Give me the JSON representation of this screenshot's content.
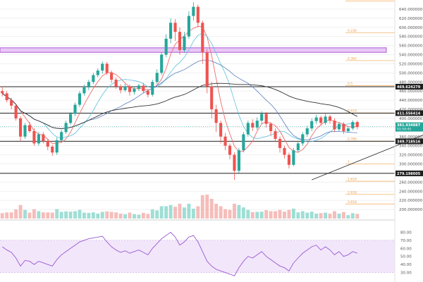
{
  "chart_data": {
    "type": "candlestick",
    "price_axis": {
      "range": [
        180,
        660
      ],
      "ticks": [
        640,
        620,
        600,
        580,
        560,
        540,
        520,
        500,
        480,
        460,
        440,
        420,
        400,
        380,
        360,
        340,
        320,
        300,
        280,
        260,
        240,
        220,
        200
      ],
      "tick_format": 6
    },
    "rsi_axis": {
      "range": [
        20,
        90
      ],
      "ticks": [
        80,
        70,
        60,
        50,
        40,
        30
      ],
      "band": [
        30,
        70
      ]
    },
    "horizontal_levels": [
      {
        "value": 469.624279,
        "label": "469.624279"
      },
      {
        "value": 411.556414,
        "label": "411.556414"
      },
      {
        "value": 349.718516,
        "label": "349.718516"
      },
      {
        "value": 279.198005,
        "label": "279.198005"
      }
    ],
    "resistance_zone": [
      545,
      555
    ],
    "current_price": {
      "value": 381.934887,
      "label": "381.934887",
      "countdown": "01:54:45"
    },
    "fib_levels": [
      658,
      588,
      527,
      472,
      412,
      350,
      300,
      262,
      233,
      212
    ],
    "fib_labels": [
      "0.0",
      "0.236",
      "0.382",
      "0.5",
      "0.618",
      "0.786",
      "1",
      "1.618",
      "2.618",
      "3.618"
    ],
    "trendline": {
      "start": {
        "index": 68,
        "price": 265
      },
      "end": {
        "index": 104,
        "price": 410
      }
    },
    "candles": [
      [
        460,
        455,
        470,
        448
      ],
      [
        455,
        440,
        460,
        435
      ],
      [
        440,
        428,
        445,
        420
      ],
      [
        428,
        400,
        432,
        395
      ],
      [
        400,
        360,
        405,
        350
      ],
      [
        360,
        385,
        390,
        355
      ],
      [
        385,
        372,
        392,
        368
      ],
      [
        372,
        345,
        378,
        340
      ],
      [
        345,
        365,
        370,
        340
      ],
      [
        365,
        350,
        370,
        345
      ],
      [
        350,
        338,
        355,
        330
      ],
      [
        338,
        325,
        342,
        318
      ],
      [
        325,
        352,
        358,
        320
      ],
      [
        352,
        370,
        375,
        348
      ],
      [
        370,
        390,
        395,
        366
      ],
      [
        390,
        410,
        414,
        386
      ],
      [
        410,
        430,
        435,
        405
      ],
      [
        430,
        455,
        460,
        425
      ],
      [
        455,
        468,
        474,
        450
      ],
      [
        468,
        480,
        485,
        462
      ],
      [
        480,
        495,
        500,
        475
      ],
      [
        495,
        505,
        510,
        490
      ],
      [
        505,
        520,
        525,
        498
      ],
      [
        520,
        500,
        524,
        495
      ],
      [
        500,
        485,
        505,
        478
      ],
      [
        485,
        470,
        490,
        465
      ],
      [
        470,
        462,
        475,
        455
      ],
      [
        462,
        470,
        476,
        458
      ],
      [
        470,
        458,
        474,
        450
      ],
      [
        458,
        465,
        470,
        452
      ],
      [
        465,
        472,
        476,
        460
      ],
      [
        472,
        460,
        478,
        455
      ],
      [
        460,
        452,
        465,
        446
      ],
      [
        452,
        480,
        485,
        448
      ],
      [
        480,
        500,
        508,
        475
      ],
      [
        500,
        540,
        545,
        495
      ],
      [
        540,
        575,
        585,
        535
      ],
      [
        575,
        610,
        620,
        565
      ],
      [
        610,
        590,
        618,
        570
      ],
      [
        590,
        550,
        600,
        540
      ],
      [
        550,
        580,
        590,
        545
      ],
      [
        580,
        625,
        635,
        575
      ],
      [
        625,
        645,
        655,
        615
      ],
      [
        645,
        610,
        650,
        600
      ],
      [
        610,
        545,
        615,
        520
      ],
      [
        545,
        470,
        552,
        455
      ],
      [
        470,
        420,
        480,
        400
      ],
      [
        420,
        390,
        430,
        370
      ],
      [
        390,
        360,
        395,
        345
      ],
      [
        360,
        340,
        368,
        330
      ],
      [
        340,
        320,
        345,
        310
      ],
      [
        320,
        285,
        325,
        265
      ],
      [
        285,
        330,
        335,
        280
      ],
      [
        330,
        365,
        370,
        325
      ],
      [
        365,
        390,
        395,
        360
      ],
      [
        390,
        380,
        398,
        372
      ],
      [
        380,
        395,
        402,
        375
      ],
      [
        395,
        410,
        416,
        388
      ],
      [
        410,
        388,
        414,
        380
      ],
      [
        388,
        372,
        392,
        362
      ],
      [
        372,
        355,
        378,
        348
      ],
      [
        355,
        335,
        360,
        325
      ],
      [
        335,
        320,
        340,
        312
      ],
      [
        320,
        298,
        325,
        290
      ],
      [
        298,
        330,
        335,
        295
      ],
      [
        330,
        345,
        350,
        325
      ],
      [
        345,
        365,
        370,
        340
      ],
      [
        365,
        378,
        384,
        360
      ],
      [
        378,
        394,
        400,
        372
      ],
      [
        394,
        402,
        408,
        388
      ],
      [
        402,
        390,
        406,
        384
      ],
      [
        390,
        404,
        410,
        386
      ],
      [
        404,
        395,
        408,
        388
      ],
      [
        395,
        376,
        400,
        370
      ],
      [
        376,
        388,
        392,
        372
      ],
      [
        388,
        372,
        392,
        366
      ],
      [
        372,
        378,
        382,
        368
      ],
      [
        378,
        392,
        396,
        374
      ],
      [
        392,
        381,
        395,
        376
      ]
    ],
    "rsi_values": [
      62,
      58,
      55,
      48,
      38,
      45,
      44,
      40,
      44,
      42,
      40,
      38,
      46,
      52,
      56,
      60,
      64,
      68,
      70,
      72,
      73,
      74,
      75,
      68,
      62,
      58,
      55,
      57,
      54,
      56,
      58,
      55,
      52,
      60,
      66,
      72,
      76,
      80,
      74,
      64,
      68,
      74,
      76,
      68,
      56,
      44,
      38,
      34,
      32,
      30,
      28,
      26,
      36,
      44,
      50,
      48,
      52,
      56,
      50,
      46,
      42,
      38,
      36,
      32,
      42,
      48,
      54,
      58,
      62,
      64,
      58,
      62,
      58,
      52,
      56,
      50,
      52,
      56,
      54
    ]
  }
}
